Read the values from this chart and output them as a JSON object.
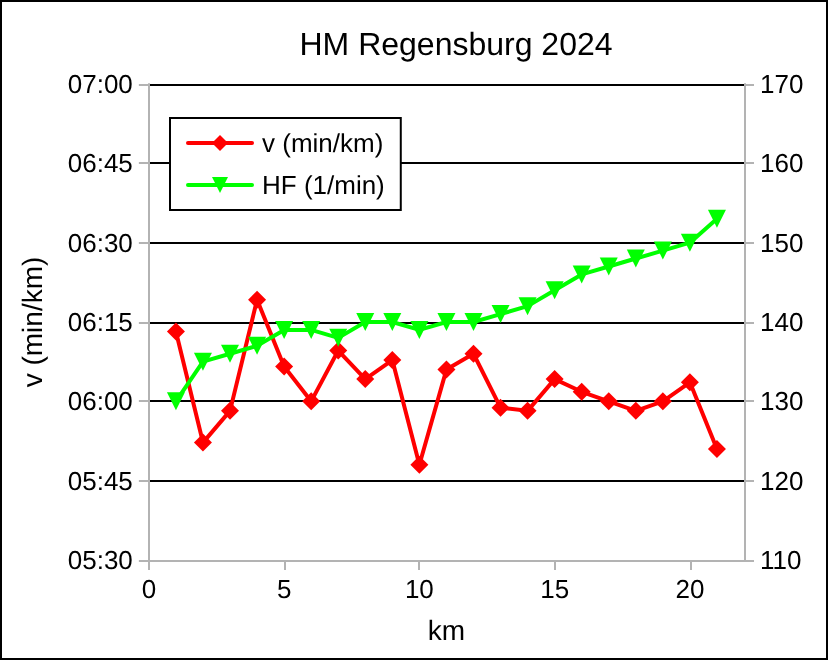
{
  "chart_data": {
    "type": "line",
    "title": "HM Regensburg 2024",
    "xlabel": "km",
    "ylabel": "v (min/km)",
    "x": [
      1,
      2,
      3,
      4,
      5,
      6,
      7,
      8,
      9,
      10,
      11,
      12,
      13,
      14,
      15,
      16,
      17,
      18,
      19,
      20,
      21
    ],
    "series": [
      {
        "name": "v (min/km)",
        "color": "#ff0000",
        "marker": "diamond",
        "values": [
          6.22,
          5.87,
          5.97,
          6.32,
          6.11,
          6.0,
          6.16,
          6.07,
          6.13,
          5.8,
          6.1,
          6.15,
          5.98,
          5.97,
          6.07,
          6.03,
          6.0,
          5.97,
          6.0,
          6.06,
          5.85
        ]
      },
      {
        "name": "HF (1/min)",
        "color": "#00ff00",
        "marker": "triangle",
        "axis": "y2",
        "values": [
          130,
          135,
          136,
          137,
          139,
          139,
          138,
          140,
          140,
          139,
          140,
          140,
          141,
          142,
          144,
          146,
          147,
          148,
          149,
          150,
          153
        ]
      }
    ],
    "xlim": [
      0,
      22
    ],
    "xticks": [
      0,
      5,
      10,
      15,
      20
    ],
    "ylim": [
      5.5,
      7
    ],
    "yticks": [
      {
        "value": 5.5,
        "label": "05:30"
      },
      {
        "value": 5.75,
        "label": "05:45"
      },
      {
        "value": 6,
        "label": "06:00"
      },
      {
        "value": 6.25,
        "label": "06:15"
      },
      {
        "value": 6.5,
        "label": "06:30"
      },
      {
        "value": 6.75,
        "label": "06:45"
      },
      {
        "value": 7,
        "label": "07:00"
      }
    ],
    "y2lim": [
      110,
      170
    ],
    "y2ticks": [
      110,
      120,
      130,
      140,
      150,
      160,
      170
    ],
    "grid": "y",
    "legend": "top left",
    "line_style": "solid"
  }
}
